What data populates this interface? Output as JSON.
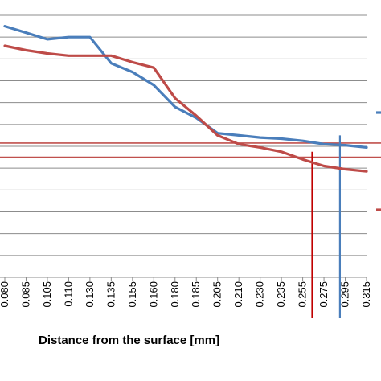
{
  "chart_data": {
    "type": "line",
    "xlabel": "Distance from the surface [mm]",
    "ylabel": "",
    "ylim": [
      0,
      12
    ],
    "grid": true,
    "categories": [
      "0.080",
      "0.085",
      "0.105",
      "0.110",
      "0.130",
      "0.135",
      "0.155",
      "0.160",
      "0.180",
      "0.185",
      "0.205",
      "0.210",
      "0.230",
      "0.235",
      "0.255",
      "0.275",
      "0.295",
      "0.315"
    ],
    "series": [
      {
        "color": "#4a7ebb",
        "values": [
          11.5,
          11.2,
          10.9,
          11.0,
          11.0,
          9.8,
          9.4,
          8.8,
          7.8,
          7.3,
          6.6,
          6.5,
          6.4,
          6.35,
          6.25,
          6.1,
          6.05,
          5.95
        ]
      },
      {
        "color": "#be4b48",
        "values": [
          10.6,
          10.4,
          10.25,
          10.15,
          10.15,
          10.15,
          9.85,
          9.6,
          8.2,
          7.4,
          6.5,
          6.1,
          5.95,
          5.75,
          5.4,
          5.1,
          4.95,
          4.85
        ]
      }
    ],
    "reference_lines": {
      "horizontal": [
        {
          "color": "#c0504d",
          "value": 6.15
        },
        {
          "color": "#c0504d",
          "value": 5.5
        }
      ],
      "vertical": [
        {
          "color": "#c00000",
          "category_value": 0.264,
          "from": 5.75
        },
        {
          "color": "#4a7ebb",
          "category_value": 0.29,
          "from": 6.5
        }
      ]
    },
    "legend_placement": "right (partially cropped)"
  }
}
